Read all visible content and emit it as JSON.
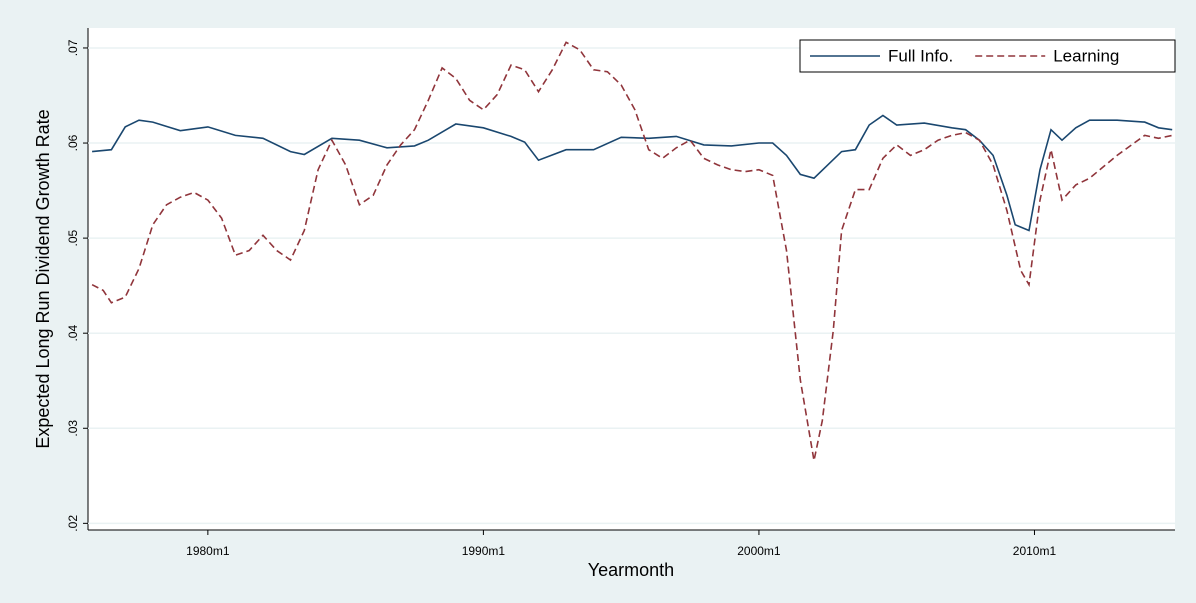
{
  "chart_data": {
    "type": "line",
    "x_label": "Yearmonth",
    "y_label": "Expected Long Run Dividend Growth Rate",
    "xlim": [
      1975.65,
      2015.1
    ],
    "ylim": [
      0.0193,
      0.0721
    ],
    "xticks": [
      {
        "value": 1980,
        "label": "1980m1"
      },
      {
        "value": 1990,
        "label": "1990m1"
      },
      {
        "value": 2000,
        "label": "2000m1"
      },
      {
        "value": 2010,
        "label": "2010m1"
      }
    ],
    "yticks": [
      {
        "value": 0.02,
        "label": ".02"
      },
      {
        "value": 0.03,
        "label": ".03"
      },
      {
        "value": 0.04,
        "label": ".04"
      },
      {
        "value": 0.05,
        "label": ".05"
      },
      {
        "value": 0.06,
        "label": ".06"
      },
      {
        "value": 0.07,
        "label": ".07"
      }
    ],
    "grid": true,
    "legend": "top-right",
    "series": [
      {
        "name": "Full Info.",
        "color": "#1a476f",
        "dash": false,
        "x": [
          1975.8,
          1976.5,
          1977,
          1977.5,
          1978,
          1979,
          1980,
          1981,
          1982,
          1983,
          1983.5,
          1984.5,
          1985.5,
          1986.5,
          1987.5,
          1988,
          1989,
          1990,
          1991,
          1991.5,
          1992,
          1993,
          1994,
          1995,
          1996,
          1997,
          1998,
          1999,
          2000,
          2000.5,
          2001,
          2001.5,
          2002,
          2003,
          2003.5,
          2004,
          2004.5,
          2005,
          2006,
          2007,
          2007.5,
          2008,
          2008.5,
          2009,
          2009.3,
          2009.8,
          2010.2,
          2010.6,
          2011,
          2011.5,
          2012,
          2013,
          2014,
          2014.5,
          2015
        ],
        "values": [
          0.0591,
          0.0593,
          0.0617,
          0.0624,
          0.0622,
          0.0613,
          0.0617,
          0.0608,
          0.0605,
          0.0591,
          0.0588,
          0.0605,
          0.0603,
          0.0595,
          0.0597,
          0.0603,
          0.062,
          0.0616,
          0.0607,
          0.0601,
          0.0582,
          0.0593,
          0.0593,
          0.0606,
          0.0605,
          0.0607,
          0.0598,
          0.0597,
          0.06,
          0.06,
          0.0587,
          0.0567,
          0.0563,
          0.0591,
          0.0593,
          0.0619,
          0.0629,
          0.0619,
          0.0621,
          0.0616,
          0.0614,
          0.0603,
          0.0587,
          0.0545,
          0.0514,
          0.0508,
          0.0572,
          0.0614,
          0.0603,
          0.0616,
          0.0624,
          0.0624,
          0.0622,
          0.0616,
          0.0614
        ]
      },
      {
        "name": "Learning",
        "color": "#90353b",
        "dash": true,
        "x": [
          1975.8,
          1976.2,
          1976.5,
          1977,
          1977.5,
          1978,
          1978.5,
          1979,
          1979.5,
          1980,
          1980.5,
          1981,
          1981.5,
          1982,
          1982.5,
          1983,
          1983.5,
          1984,
          1984.5,
          1985,
          1985.5,
          1986,
          1986.5,
          1987,
          1987.5,
          1988,
          1988.5,
          1989,
          1989.5,
          1990,
          1990.5,
          1991,
          1991.5,
          1992,
          1992.5,
          1993,
          1993.5,
          1994,
          1994.5,
          1995,
          1995.5,
          1996,
          1996.5,
          1997,
          1997.5,
          1998,
          1998.5,
          1999,
          1999.5,
          2000,
          2000.5,
          2001,
          2001.5,
          2002,
          2002.3,
          2002.7,
          2003,
          2003.5,
          2004,
          2004.5,
          2005,
          2005.5,
          2006,
          2006.5,
          2007,
          2007.5,
          2008,
          2008.5,
          2009,
          2009.5,
          2009.8,
          2010.2,
          2010.6,
          2011,
          2011.5,
          2012,
          2013,
          2014,
          2014.5,
          2015
        ],
        "values": [
          0.0451,
          0.0445,
          0.0432,
          0.0438,
          0.0468,
          0.0514,
          0.0535,
          0.0543,
          0.0548,
          0.054,
          0.0521,
          0.0482,
          0.0487,
          0.0503,
          0.0487,
          0.0477,
          0.0508,
          0.0572,
          0.0603,
          0.0577,
          0.0535,
          0.0545,
          0.0577,
          0.0598,
          0.0614,
          0.0645,
          0.0679,
          0.0668,
          0.0645,
          0.0635,
          0.0651,
          0.0682,
          0.0677,
          0.0654,
          0.0677,
          0.0706,
          0.0698,
          0.0677,
          0.0675,
          0.0661,
          0.0635,
          0.0593,
          0.0584,
          0.0595,
          0.0603,
          0.0584,
          0.0577,
          0.0572,
          0.057,
          0.0572,
          0.0566,
          0.0487,
          0.0351,
          0.0266,
          0.0308,
          0.0403,
          0.0508,
          0.0551,
          0.0551,
          0.0584,
          0.0598,
          0.0587,
          0.0593,
          0.0603,
          0.0608,
          0.0611,
          0.0603,
          0.0577,
          0.0529,
          0.0466,
          0.0451,
          0.054,
          0.0593,
          0.054,
          0.0556,
          0.0563,
          0.0587,
          0.0608,
          0.0605,
          0.0608
        ]
      }
    ]
  }
}
